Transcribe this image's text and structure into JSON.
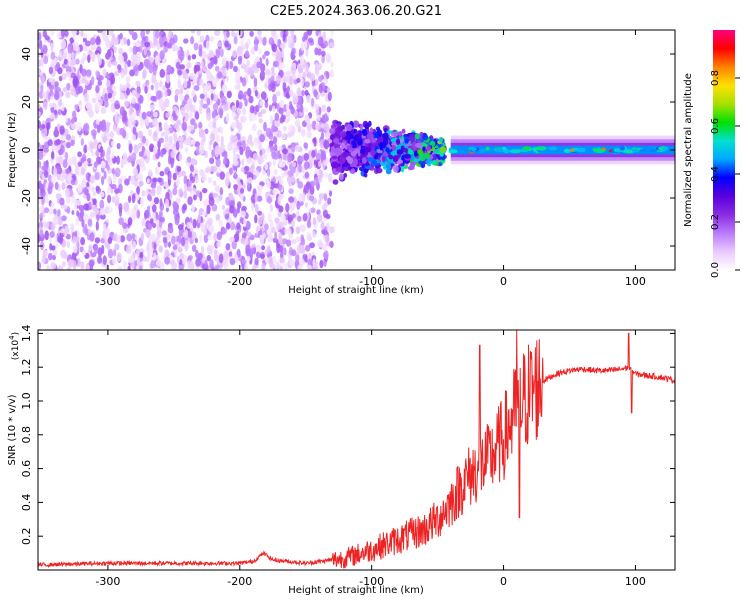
{
  "figure_title": "C2E5.2024.363.06.20.G21",
  "chart_data": [
    {
      "type": "heatmap",
      "xlabel": "Height of straight line (km)",
      "ylabel": "Frequency (Hz)",
      "xlim": [
        -353,
        130
      ],
      "ylim": [
        -50,
        50
      ],
      "x_ticks": [
        -300,
        -200,
        -100,
        0,
        100
      ],
      "y_ticks": [
        -40,
        -20,
        0,
        20,
        40
      ],
      "colorbar": {
        "label": "Normalized spectral amplitude",
        "range": [
          0,
          1
        ],
        "ticks": [
          "0.0",
          "0.2",
          "0.4",
          "0.6",
          "0.8"
        ],
        "colormap": [
          "#ffffff",
          "#e9c8ff",
          "#b97bff",
          "#8a2be2",
          "#5a00dd",
          "#0000ff",
          "#00a8ff",
          "#00e0d0",
          "#00e000",
          "#a8e000",
          "#ffe000",
          "#ff8000",
          "#ff0000",
          "#ff0080"
        ]
      },
      "features": {
        "noise_region_km": [
          -353,
          -130
        ],
        "transition_region_km": [
          -130,
          -45
        ],
        "tone_region_km": [
          -40,
          130
        ],
        "tone_frequency_hz": 0,
        "tone_level_approx": 0.5
      }
    },
    {
      "type": "line",
      "xlabel": "Height of straight line (km)",
      "ylabel": "SNR (10 * v/v)",
      "y_multiplier": "(x10",
      "y_multiplier_exp": "4",
      "xlim": [
        -353,
        130
      ],
      "ylim": [
        0,
        1.42
      ],
      "x_ticks": [
        -300,
        -200,
        -100,
        0,
        100
      ],
      "y_ticks": [
        0.2,
        0.4,
        0.6,
        0.8,
        1.0,
        1.2,
        1.4
      ],
      "series": [
        {
          "color": "#ee2222",
          "envelope": {
            "x": [
              -353,
              -300,
              -250,
              -200,
              -190,
              -182,
              -175,
              -150,
              -120,
              -100,
              -80,
              -60,
              -50,
              -40,
              -30,
              -20,
              -10,
              0,
              10,
              20,
              30,
              40,
              50,
              60,
              70,
              80,
              90,
              95,
              100,
              110,
              120,
              130
            ],
            "y": [
              0.03,
              0.04,
              0.04,
              0.04,
              0.05,
              0.1,
              0.06,
              0.04,
              0.07,
              0.12,
              0.18,
              0.24,
              0.3,
              0.4,
              0.52,
              0.6,
              0.66,
              0.78,
              0.95,
              1.05,
              1.12,
              1.16,
              1.18,
              1.19,
              1.18,
              1.18,
              1.19,
              1.2,
              1.16,
              1.15,
              1.14,
              1.12
            ]
          },
          "spikes": [
            {
              "x": -18,
              "y": 1.33
            },
            {
              "x": 10,
              "y": 1.42
            },
            {
              "x": 12,
              "y": 0.31
            },
            {
              "x": 95,
              "y": 1.4
            },
            {
              "x": 97,
              "y": 0.93
            }
          ]
        }
      ]
    }
  ]
}
